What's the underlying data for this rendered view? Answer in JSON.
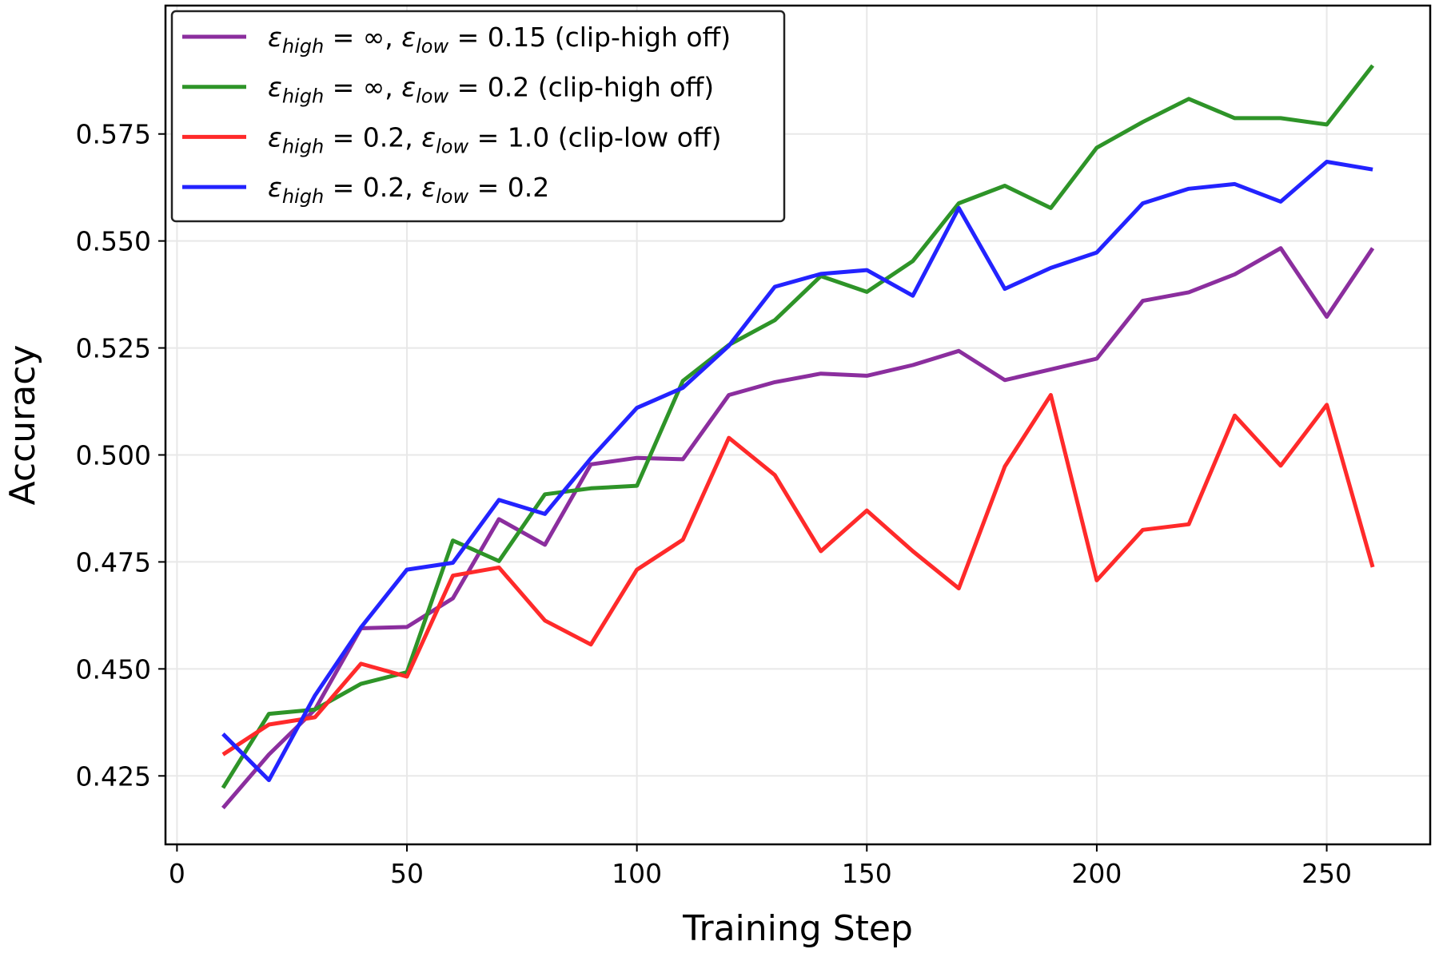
{
  "chart_data": {
    "type": "line",
    "title": "",
    "xlabel": "Training Step",
    "ylabel": "Accuracy",
    "xlim": [
      -2.5,
      272.5
    ],
    "ylim": [
      0.409,
      0.605
    ],
    "xticks": [
      0,
      50,
      100,
      150,
      200,
      250
    ],
    "yticks": [
      0.425,
      0.45,
      0.475,
      0.5,
      0.525,
      0.55,
      0.575
    ],
    "xtick_labels": [
      "0",
      "50",
      "100",
      "150",
      "200",
      "250"
    ],
    "ytick_labels": [
      "0.425",
      "0.450",
      "0.475",
      "0.500",
      "0.525",
      "0.550",
      "0.575"
    ],
    "grid": true,
    "legend_position": "top-left",
    "x": [
      10,
      20,
      30,
      40,
      50,
      60,
      70,
      80,
      90,
      100,
      110,
      120,
      130,
      140,
      150,
      160,
      170,
      180,
      190,
      200,
      210,
      220,
      230,
      240,
      250,
      260
    ],
    "series": [
      {
        "name": "ε_high = ∞, ε_low = 0.15 (clip-high off)",
        "label_parts": {
          "eps": "ε",
          "high": "high",
          "low": "low",
          "eq_high": " = ∞, ",
          "eq_low": " = 0.15 (clip-high off)"
        },
        "color": "#8b2e9e",
        "values": [
          0.4175,
          0.43,
          0.4405,
          0.4595,
          0.4598,
          0.4665,
          0.485,
          0.479,
          0.4978,
          0.4993,
          0.499,
          0.514,
          0.517,
          0.519,
          0.5185,
          0.521,
          0.5243,
          0.5175,
          0.52,
          0.5225,
          0.536,
          0.538,
          0.5422,
          0.5483,
          0.5323,
          0.5483
        ]
      },
      {
        "name": "ε_high = ∞, ε_low = 0.2 (clip-high off)",
        "label_parts": {
          "eps": "ε",
          "high": "high",
          "low": "low",
          "eq_high": " = ∞, ",
          "eq_low": " = 0.2 (clip-high off)"
        },
        "color": "#2e9428",
        "values": [
          0.4222,
          0.4395,
          0.4405,
          0.4465,
          0.4492,
          0.48,
          0.4752,
          0.4908,
          0.4922,
          0.4928,
          0.5173,
          0.5257,
          0.5315,
          0.5418,
          0.5381,
          0.5453,
          0.5588,
          0.5629,
          0.5577,
          0.5718,
          0.5778,
          0.5832,
          0.5787,
          0.5787,
          0.5772,
          0.591
        ]
      },
      {
        "name": "ε_high = 0.2, ε_low = 1.0 (clip-low off)",
        "label_parts": {
          "eps": "ε",
          "high": "high",
          "low": "low",
          "eq_high": " = 0.2, ",
          "eq_low": " = 1.0 (clip-low off)"
        },
        "color": "#ff2a2a",
        "values": [
          0.43,
          0.437,
          0.4387,
          0.4512,
          0.4482,
          0.4718,
          0.4737,
          0.4613,
          0.4557,
          0.4732,
          0.4802,
          0.504,
          0.4953,
          0.4775,
          0.487,
          0.4775,
          0.4688,
          0.4973,
          0.514,
          0.4707,
          0.4825,
          0.4838,
          0.5092,
          0.4975,
          0.5117,
          0.4738
        ]
      },
      {
        "name": "ε_high = 0.2, ε_low = 0.2",
        "label_parts": {
          "eps": "ε",
          "high": "high",
          "low": "low",
          "eq_high": " = 0.2, ",
          "eq_low": " = 0.2"
        },
        "color": "#2323ff",
        "values": [
          0.4348,
          0.424,
          0.4438,
          0.4597,
          0.4732,
          0.4748,
          0.4895,
          0.4862,
          0.4992,
          0.511,
          0.5157,
          0.5255,
          0.5393,
          0.5423,
          0.5432,
          0.5372,
          0.5577,
          0.5388,
          0.5437,
          0.5473,
          0.5588,
          0.5622,
          0.5633,
          0.5592,
          0.5685,
          0.5667
        ]
      }
    ]
  }
}
